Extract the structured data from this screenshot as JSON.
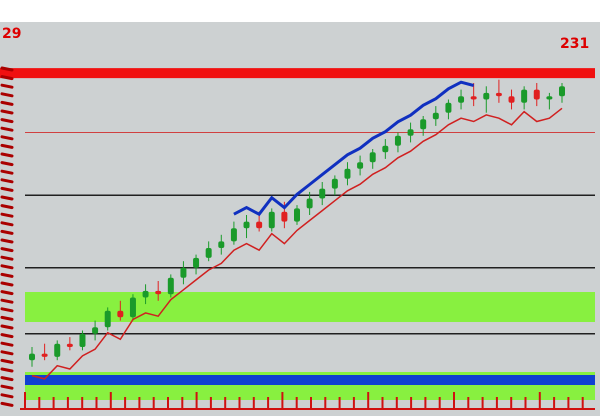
{
  "chart_data": {
    "type": "candlestick",
    "title": "",
    "xlabel": "",
    "ylabel": "",
    "corner_labels": {
      "top_left": "29",
      "top_right": "231"
    },
    "ylim": [
      0,
      100
    ],
    "grid": false,
    "colors": {
      "up": "#1a9a2a",
      "down": "#e02020",
      "trend_line": "#1030c0",
      "moving_average": "#d02020",
      "top_band": "#f01010",
      "bottom_band": "#1040d0",
      "highlight": "#88f040"
    },
    "horizontal_levels": [
      {
        "value": 97,
        "color": "#f01010"
      },
      {
        "value": 79,
        "color": "#d04040"
      },
      {
        "value": 60,
        "color": "#202020"
      },
      {
        "value": 38,
        "color": "#202020"
      },
      {
        "value": 18,
        "color": "#202020"
      },
      {
        "value": 4,
        "color": "#1040d0"
      }
    ],
    "candles": [
      [
        10,
        14,
        8,
        12
      ],
      [
        12,
        15,
        10,
        11
      ],
      [
        11,
        16,
        10,
        15
      ],
      [
        15,
        17,
        13,
        14
      ],
      [
        14,
        19,
        13,
        18
      ],
      [
        18,
        22,
        16,
        20
      ],
      [
        20,
        26,
        19,
        25
      ],
      [
        25,
        28,
        22,
        23
      ],
      [
        23,
        30,
        22,
        29
      ],
      [
        29,
        33,
        27,
        31
      ],
      [
        31,
        34,
        28,
        30
      ],
      [
        30,
        36,
        29,
        35
      ],
      [
        35,
        40,
        33,
        38
      ],
      [
        38,
        42,
        36,
        41
      ],
      [
        41,
        46,
        40,
        44
      ],
      [
        44,
        48,
        42,
        46
      ],
      [
        46,
        52,
        45,
        50
      ],
      [
        50,
        54,
        47,
        52
      ],
      [
        52,
        55,
        49,
        50
      ],
      [
        50,
        56,
        49,
        55
      ],
      [
        55,
        58,
        50,
        52
      ],
      [
        52,
        57,
        51,
        56
      ],
      [
        56,
        61,
        54,
        59
      ],
      [
        59,
        64,
        57,
        62
      ],
      [
        62,
        66,
        60,
        65
      ],
      [
        65,
        70,
        63,
        68
      ],
      [
        68,
        72,
        66,
        70
      ],
      [
        70,
        74,
        68,
        73
      ],
      [
        73,
        77,
        71,
        75
      ],
      [
        75,
        79,
        73,
        78
      ],
      [
        78,
        82,
        76,
        80
      ],
      [
        80,
        84,
        78,
        83
      ],
      [
        83,
        87,
        81,
        85
      ],
      [
        85,
        89,
        83,
        88
      ],
      [
        88,
        92,
        86,
        90
      ],
      [
        90,
        94,
        87,
        89
      ],
      [
        89,
        93,
        85,
        91
      ],
      [
        91,
        95,
        88,
        90
      ],
      [
        90,
        92,
        86,
        88
      ],
      [
        88,
        93,
        86,
        92
      ],
      [
        92,
        94,
        87,
        89
      ],
      [
        89,
        91,
        86,
        90
      ],
      [
        90,
        94,
        88,
        93
      ]
    ]
  }
}
